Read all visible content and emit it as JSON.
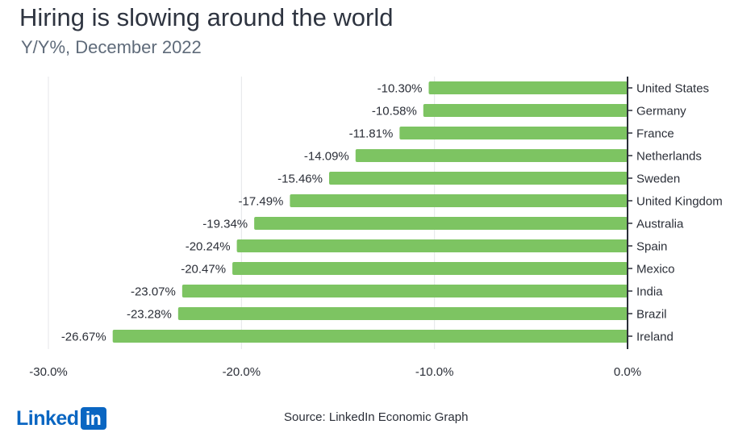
{
  "header": {
    "title": "Hiring is slowing around the world",
    "subtitle": "Y/Y%, December 2022"
  },
  "footer": {
    "source": "Source: LinkedIn Economic Graph",
    "logo_word": "Linked",
    "logo_box": "in"
  },
  "colors": {
    "bar": "#7dc462",
    "grid": "#e4e6e9",
    "zero_line": "#2b2f38",
    "text": "#2b2f38",
    "brand": "#0a66c2"
  },
  "chart_data": {
    "type": "bar",
    "orientation": "horizontal",
    "categories": [
      "United States",
      "Germany",
      "France",
      "Netherlands",
      "Sweden",
      "United Kingdom",
      "Australia",
      "Spain",
      "Mexico",
      "India",
      "Brazil",
      "Ireland"
    ],
    "values": [
      -10.3,
      -10.58,
      -11.81,
      -14.09,
      -15.46,
      -17.49,
      -19.34,
      -20.24,
      -20.47,
      -23.07,
      -23.28,
      -26.67
    ],
    "data_labels": [
      "-10.30%",
      "-10.58%",
      "-11.81%",
      "-14.09%",
      "-15.46%",
      "-17.49%",
      "-19.34%",
      "-20.24%",
      "-20.47%",
      "-23.07%",
      "-23.28%",
      "-26.67%"
    ],
    "xlim": [
      -30,
      0
    ],
    "xticks": [
      -30,
      -20,
      -10,
      0
    ],
    "xtick_labels": [
      "-30.0%",
      "-20.0%",
      "-10.0%",
      "0.0%"
    ],
    "grid": true,
    "legend": "none"
  }
}
